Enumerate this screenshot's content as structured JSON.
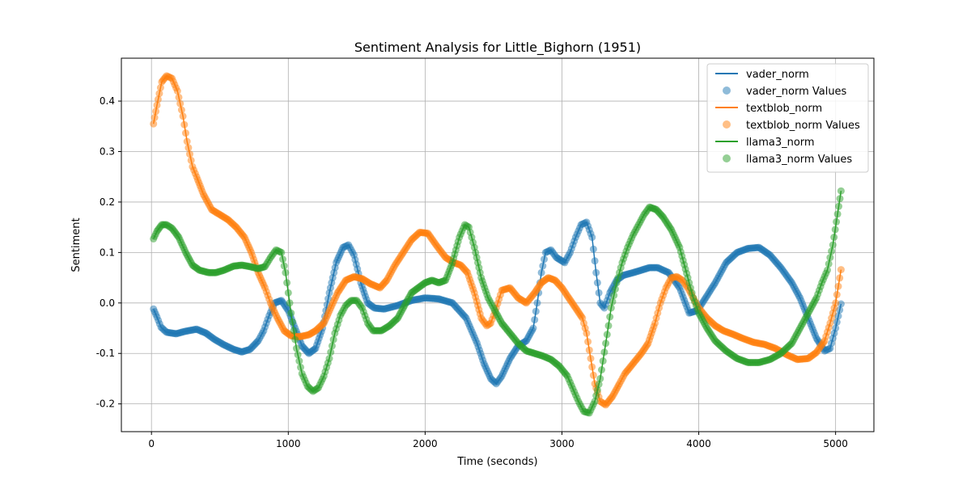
{
  "chart_data": {
    "type": "line",
    "title": "Sentiment Analysis for Little_Bighorn (1951)",
    "xlabel": "Time (seconds)",
    "ylabel": "Sentiment",
    "xlim": [
      -220,
      5280
    ],
    "ylim": [
      -0.255,
      0.485
    ],
    "xticks": [
      0,
      1000,
      2000,
      3000,
      4000,
      5000
    ],
    "yticks": [
      -0.2,
      -0.1,
      0.0,
      0.1,
      0.2,
      0.3,
      0.4
    ],
    "grid": true,
    "legend_position": "top-right",
    "series": [
      {
        "name": "vader_norm",
        "color": "#1f77b4",
        "points": [
          [
            15,
            -0.012
          ],
          [
            40,
            -0.028
          ],
          [
            70,
            -0.048
          ],
          [
            110,
            -0.058
          ],
          [
            180,
            -0.061
          ],
          [
            250,
            -0.056
          ],
          [
            330,
            -0.052
          ],
          [
            400,
            -0.06
          ],
          [
            460,
            -0.072
          ],
          [
            530,
            -0.083
          ],
          [
            600,
            -0.092
          ],
          [
            660,
            -0.097
          ],
          [
            720,
            -0.092
          ],
          [
            780,
            -0.075
          ],
          [
            820,
            -0.055
          ],
          [
            860,
            -0.025
          ],
          [
            900,
            0.0
          ],
          [
            950,
            0.005
          ],
          [
            1000,
            -0.015
          ],
          [
            1050,
            -0.05
          ],
          [
            1100,
            -0.085
          ],
          [
            1150,
            -0.1
          ],
          [
            1200,
            -0.09
          ],
          [
            1250,
            -0.05
          ],
          [
            1300,
            0.02
          ],
          [
            1350,
            0.08
          ],
          [
            1400,
            0.11
          ],
          [
            1440,
            0.115
          ],
          [
            1480,
            0.095
          ],
          [
            1530,
            0.04
          ],
          [
            1580,
            0.0
          ],
          [
            1630,
            -0.01
          ],
          [
            1700,
            -0.012
          ],
          [
            1800,
            -0.005
          ],
          [
            1900,
            0.005
          ],
          [
            2000,
            0.01
          ],
          [
            2100,
            0.008
          ],
          [
            2200,
            0.0
          ],
          [
            2300,
            -0.03
          ],
          [
            2380,
            -0.08
          ],
          [
            2430,
            -0.12
          ],
          [
            2480,
            -0.15
          ],
          [
            2520,
            -0.16
          ],
          [
            2560,
            -0.145
          ],
          [
            2620,
            -0.11
          ],
          [
            2680,
            -0.085
          ],
          [
            2740,
            -0.075
          ],
          [
            2790,
            -0.05
          ],
          [
            2820,
            0.0
          ],
          [
            2850,
            0.06
          ],
          [
            2880,
            0.1
          ],
          [
            2920,
            0.105
          ],
          [
            2960,
            0.09
          ],
          [
            3020,
            0.08
          ],
          [
            3060,
            0.1
          ],
          [
            3100,
            0.13
          ],
          [
            3140,
            0.155
          ],
          [
            3180,
            0.16
          ],
          [
            3220,
            0.13
          ],
          [
            3250,
            0.06
          ],
          [
            3280,
            0.0
          ],
          [
            3310,
            -0.01
          ],
          [
            3350,
            0.02
          ],
          [
            3400,
            0.045
          ],
          [
            3450,
            0.055
          ],
          [
            3520,
            0.06
          ],
          [
            3580,
            0.065
          ],
          [
            3640,
            0.07
          ],
          [
            3700,
            0.07
          ],
          [
            3780,
            0.06
          ],
          [
            3860,
            0.03
          ],
          [
            3930,
            -0.02
          ],
          [
            3990,
            -0.015
          ],
          [
            4050,
            0.01
          ],
          [
            4120,
            0.04
          ],
          [
            4200,
            0.08
          ],
          [
            4280,
            0.1
          ],
          [
            4360,
            0.108
          ],
          [
            4440,
            0.11
          ],
          [
            4520,
            0.095
          ],
          [
            4600,
            0.07
          ],
          [
            4680,
            0.04
          ],
          [
            4740,
            0.01
          ],
          [
            4800,
            -0.03
          ],
          [
            4860,
            -0.07
          ],
          [
            4920,
            -0.095
          ],
          [
            4960,
            -0.09
          ],
          [
            5000,
            -0.05
          ],
          [
            5040,
            -0.002
          ]
        ]
      },
      {
        "name": "textblob_norm",
        "color": "#ff7f0e",
        "points": [
          [
            15,
            0.355
          ],
          [
            40,
            0.392
          ],
          [
            75,
            0.438
          ],
          [
            110,
            0.45
          ],
          [
            150,
            0.445
          ],
          [
            190,
            0.42
          ],
          [
            230,
            0.37
          ],
          [
            260,
            0.32
          ],
          [
            300,
            0.27
          ],
          [
            330,
            0.25
          ],
          [
            380,
            0.215
          ],
          [
            440,
            0.185
          ],
          [
            500,
            0.175
          ],
          [
            560,
            0.165
          ],
          [
            620,
            0.15
          ],
          [
            680,
            0.13
          ],
          [
            730,
            0.1
          ],
          [
            780,
            0.06
          ],
          [
            830,
            0.03
          ],
          [
            870,
            0.0
          ],
          [
            920,
            -0.03
          ],
          [
            970,
            -0.055
          ],
          [
            1020,
            -0.065
          ],
          [
            1080,
            -0.067
          ],
          [
            1150,
            -0.063
          ],
          [
            1200,
            -0.055
          ],
          [
            1260,
            -0.04
          ],
          [
            1310,
            -0.01
          ],
          [
            1360,
            0.02
          ],
          [
            1420,
            0.045
          ],
          [
            1480,
            0.052
          ],
          [
            1540,
            0.048
          ],
          [
            1600,
            0.038
          ],
          [
            1670,
            0.03
          ],
          [
            1720,
            0.045
          ],
          [
            1780,
            0.075
          ],
          [
            1840,
            0.1
          ],
          [
            1900,
            0.125
          ],
          [
            1960,
            0.14
          ],
          [
            2020,
            0.138
          ],
          [
            2080,
            0.115
          ],
          [
            2150,
            0.09
          ],
          [
            2210,
            0.08
          ],
          [
            2260,
            0.075
          ],
          [
            2310,
            0.06
          ],
          [
            2360,
            0.02
          ],
          [
            2410,
            -0.03
          ],
          [
            2450,
            -0.045
          ],
          [
            2480,
            -0.04
          ],
          [
            2520,
            -0.01
          ],
          [
            2560,
            0.025
          ],
          [
            2620,
            0.03
          ],
          [
            2680,
            0.01
          ],
          [
            2740,
            0.0
          ],
          [
            2800,
            0.02
          ],
          [
            2850,
            0.04
          ],
          [
            2900,
            0.05
          ],
          [
            2950,
            0.045
          ],
          [
            3000,
            0.03
          ],
          [
            3050,
            0.01
          ],
          [
            3100,
            -0.01
          ],
          [
            3150,
            -0.03
          ],
          [
            3180,
            -0.06
          ],
          [
            3210,
            -0.11
          ],
          [
            3240,
            -0.16
          ],
          [
            3280,
            -0.195
          ],
          [
            3320,
            -0.202
          ],
          [
            3370,
            -0.185
          ],
          [
            3420,
            -0.16
          ],
          [
            3460,
            -0.14
          ],
          [
            3520,
            -0.12
          ],
          [
            3580,
            -0.1
          ],
          [
            3630,
            -0.08
          ],
          [
            3680,
            -0.04
          ],
          [
            3720,
            0.0
          ],
          [
            3760,
            0.03
          ],
          [
            3800,
            0.05
          ],
          [
            3840,
            0.052
          ],
          [
            3880,
            0.045
          ],
          [
            3920,
            0.03
          ],
          [
            3960,
            0.01
          ],
          [
            4000,
            -0.01
          ],
          [
            4060,
            -0.03
          ],
          [
            4120,
            -0.045
          ],
          [
            4180,
            -0.055
          ],
          [
            4250,
            -0.062
          ],
          [
            4320,
            -0.07
          ],
          [
            4400,
            -0.078
          ],
          [
            4480,
            -0.082
          ],
          [
            4560,
            -0.09
          ],
          [
            4640,
            -0.102
          ],
          [
            4720,
            -0.112
          ],
          [
            4800,
            -0.11
          ],
          [
            4860,
            -0.098
          ],
          [
            4920,
            -0.075
          ],
          [
            4960,
            -0.04
          ],
          [
            5000,
            0.0
          ],
          [
            5040,
            0.066
          ]
        ]
      },
      {
        "name": "llama3_norm",
        "color": "#2ca02c",
        "points": [
          [
            15,
            0.127
          ],
          [
            40,
            0.142
          ],
          [
            75,
            0.155
          ],
          [
            110,
            0.155
          ],
          [
            150,
            0.148
          ],
          [
            200,
            0.13
          ],
          [
            250,
            0.1
          ],
          [
            300,
            0.075
          ],
          [
            350,
            0.065
          ],
          [
            420,
            0.06
          ],
          [
            470,
            0.06
          ],
          [
            530,
            0.065
          ],
          [
            600,
            0.073
          ],
          [
            660,
            0.075
          ],
          [
            720,
            0.072
          ],
          [
            780,
            0.068
          ],
          [
            830,
            0.072
          ],
          [
            870,
            0.09
          ],
          [
            910,
            0.105
          ],
          [
            950,
            0.1
          ],
          [
            980,
            0.06
          ],
          [
            1020,
            -0.02
          ],
          [
            1060,
            -0.09
          ],
          [
            1100,
            -0.14
          ],
          [
            1140,
            -0.165
          ],
          [
            1180,
            -0.175
          ],
          [
            1220,
            -0.168
          ],
          [
            1260,
            -0.145
          ],
          [
            1300,
            -0.11
          ],
          [
            1340,
            -0.06
          ],
          [
            1380,
            -0.025
          ],
          [
            1420,
            -0.005
          ],
          [
            1460,
            0.005
          ],
          [
            1500,
            0.005
          ],
          [
            1540,
            -0.01
          ],
          [
            1580,
            -0.04
          ],
          [
            1620,
            -0.055
          ],
          [
            1680,
            -0.055
          ],
          [
            1740,
            -0.045
          ],
          [
            1800,
            -0.03
          ],
          [
            1850,
            -0.005
          ],
          [
            1900,
            0.02
          ],
          [
            1950,
            0.03
          ],
          [
            2000,
            0.04
          ],
          [
            2050,
            0.045
          ],
          [
            2100,
            0.04
          ],
          [
            2150,
            0.045
          ],
          [
            2200,
            0.08
          ],
          [
            2250,
            0.13
          ],
          [
            2290,
            0.155
          ],
          [
            2320,
            0.15
          ],
          [
            2360,
            0.11
          ],
          [
            2410,
            0.05
          ],
          [
            2460,
            0.01
          ],
          [
            2500,
            -0.01
          ],
          [
            2560,
            -0.04
          ],
          [
            2620,
            -0.06
          ],
          [
            2680,
            -0.08
          ],
          [
            2740,
            -0.095
          ],
          [
            2800,
            -0.1
          ],
          [
            2860,
            -0.105
          ],
          [
            2920,
            -0.112
          ],
          [
            2980,
            -0.125
          ],
          [
            3040,
            -0.145
          ],
          [
            3080,
            -0.17
          ],
          [
            3120,
            -0.195
          ],
          [
            3160,
            -0.215
          ],
          [
            3200,
            -0.218
          ],
          [
            3240,
            -0.195
          ],
          [
            3280,
            -0.15
          ],
          [
            3320,
            -0.08
          ],
          [
            3360,
            -0.01
          ],
          [
            3400,
            0.04
          ],
          [
            3440,
            0.08
          ],
          [
            3480,
            0.11
          ],
          [
            3520,
            0.135
          ],
          [
            3560,
            0.155
          ],
          [
            3600,
            0.175
          ],
          [
            3640,
            0.19
          ],
          [
            3690,
            0.185
          ],
          [
            3740,
            0.17
          ],
          [
            3800,
            0.145
          ],
          [
            3860,
            0.11
          ],
          [
            3920,
            0.05
          ],
          [
            3960,
            0.01
          ],
          [
            4000,
            -0.02
          ],
          [
            4060,
            -0.05
          ],
          [
            4120,
            -0.075
          ],
          [
            4200,
            -0.095
          ],
          [
            4280,
            -0.11
          ],
          [
            4360,
            -0.118
          ],
          [
            4440,
            -0.118
          ],
          [
            4520,
            -0.112
          ],
          [
            4600,
            -0.1
          ],
          [
            4680,
            -0.08
          ],
          [
            4740,
            -0.05
          ],
          [
            4800,
            -0.02
          ],
          [
            4860,
            0.01
          ],
          [
            4900,
            0.04
          ],
          [
            4940,
            0.065
          ],
          [
            4980,
            0.115
          ],
          [
            5040,
            0.222
          ]
        ]
      }
    ],
    "legend": [
      {
        "label": "vader_norm",
        "kind": "line",
        "color": "#1f77b4"
      },
      {
        "label": "vader_norm Values",
        "kind": "marker",
        "color": "#1f77b4"
      },
      {
        "label": "textblob_norm",
        "kind": "line",
        "color": "#ff7f0e"
      },
      {
        "label": "textblob_norm Values",
        "kind": "marker",
        "color": "#ff7f0e"
      },
      {
        "label": "llama3_norm",
        "kind": "line",
        "color": "#2ca02c"
      },
      {
        "label": "llama3_norm Values",
        "kind": "marker",
        "color": "#2ca02c"
      }
    ]
  }
}
